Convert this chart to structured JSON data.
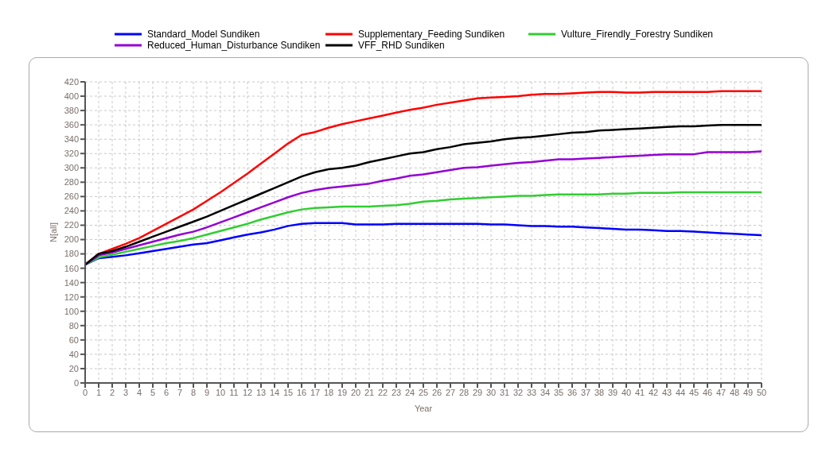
{
  "chart_data": {
    "type": "line",
    "xlabel": "Year",
    "ylabel": "N[all]",
    "legend": "top",
    "grid": true,
    "marker": "none",
    "line_style": "solid",
    "x": [
      0,
      1,
      2,
      3,
      4,
      5,
      6,
      7,
      8,
      9,
      10,
      11,
      12,
      13,
      14,
      15,
      16,
      17,
      18,
      19,
      20,
      21,
      22,
      23,
      24,
      25,
      26,
      27,
      28,
      29,
      30,
      31,
      32,
      33,
      34,
      35,
      36,
      37,
      38,
      39,
      40,
      41,
      42,
      43,
      44,
      45,
      46,
      47,
      48,
      49,
      50
    ],
    "xlim": [
      0,
      50
    ],
    "xticks": [
      0,
      1,
      2,
      3,
      4,
      5,
      6,
      7,
      8,
      9,
      10,
      11,
      12,
      13,
      14,
      15,
      16,
      17,
      18,
      19,
      20,
      21,
      22,
      23,
      24,
      25,
      26,
      27,
      28,
      29,
      30,
      31,
      32,
      33,
      34,
      35,
      36,
      37,
      38,
      39,
      40,
      41,
      42,
      43,
      44,
      45,
      46,
      47,
      48,
      49,
      50
    ],
    "ylim": [
      0,
      420
    ],
    "yticks": [
      0,
      20,
      40,
      60,
      80,
      100,
      120,
      140,
      160,
      180,
      200,
      220,
      240,
      260,
      280,
      300,
      320,
      340,
      360,
      380,
      400,
      420
    ],
    "series": [
      {
        "name": "Standard_Model Sundiken",
        "color": "#0000ff",
        "values": [
          165,
          174,
          176,
          178,
          181,
          184,
          187,
          190,
          193,
          195,
          199,
          203,
          207,
          210,
          214,
          219,
          222,
          223,
          223,
          223,
          221,
          221,
          221,
          222,
          222,
          222,
          222,
          222,
          222,
          222,
          221,
          221,
          220,
          219,
          219,
          218,
          218,
          217,
          216,
          215,
          214,
          214,
          213,
          212,
          212,
          211,
          210,
          209,
          208,
          207,
          206
        ]
      },
      {
        "name": "Supplementary_Feeding Sundiken",
        "color": "#ff0000",
        "values": [
          165,
          180,
          187,
          194,
          202,
          212,
          222,
          232,
          242,
          254,
          266,
          279,
          292,
          306,
          320,
          334,
          346,
          350,
          356,
          361,
          365,
          369,
          373,
          377,
          381,
          384,
          388,
          391,
          394,
          397,
          398,
          399,
          400,
          402,
          403,
          403,
          404,
          405,
          406,
          406,
          405,
          405,
          406,
          406,
          406,
          406,
          406,
          407,
          407,
          407,
          407
        ]
      },
      {
        "name": "Vulture_Firendly_Forestry Sundiken",
        "color": "#32cd32",
        "values": [
          165,
          175,
          179,
          183,
          187,
          191,
          195,
          198,
          202,
          207,
          212,
          217,
          222,
          228,
          233,
          238,
          242,
          244,
          245,
          246,
          246,
          246,
          247,
          248,
          250,
          253,
          254,
          256,
          257,
          258,
          259,
          260,
          261,
          261,
          262,
          263,
          263,
          263,
          263,
          264,
          264,
          265,
          265,
          265,
          266,
          266,
          266,
          266,
          266,
          266,
          266
        ]
      },
      {
        "name": "Reduced_Human_Disturbance Sundiken",
        "color": "#9400d3",
        "values": [
          165,
          178,
          182,
          187,
          192,
          197,
          202,
          207,
          211,
          217,
          224,
          231,
          238,
          245,
          252,
          259,
          265,
          269,
          272,
          274,
          276,
          278,
          282,
          285,
          289,
          291,
          294,
          297,
          300,
          301,
          303,
          305,
          307,
          308,
          310,
          312,
          312,
          313,
          314,
          315,
          316,
          317,
          318,
          319,
          319,
          319,
          322,
          322,
          322,
          322,
          323
        ]
      },
      {
        "name": "VFF_RHD Sundiken",
        "color": "#000000",
        "values": [
          165,
          180,
          184,
          190,
          197,
          204,
          211,
          218,
          225,
          232,
          240,
          248,
          256,
          264,
          272,
          280,
          288,
          294,
          298,
          300,
          303,
          308,
          312,
          316,
          320,
          322,
          326,
          329,
          333,
          335,
          337,
          340,
          342,
          343,
          345,
          347,
          349,
          350,
          352,
          353,
          354,
          355,
          356,
          357,
          358,
          358,
          359,
          360,
          360,
          360,
          360
        ]
      }
    ]
  }
}
